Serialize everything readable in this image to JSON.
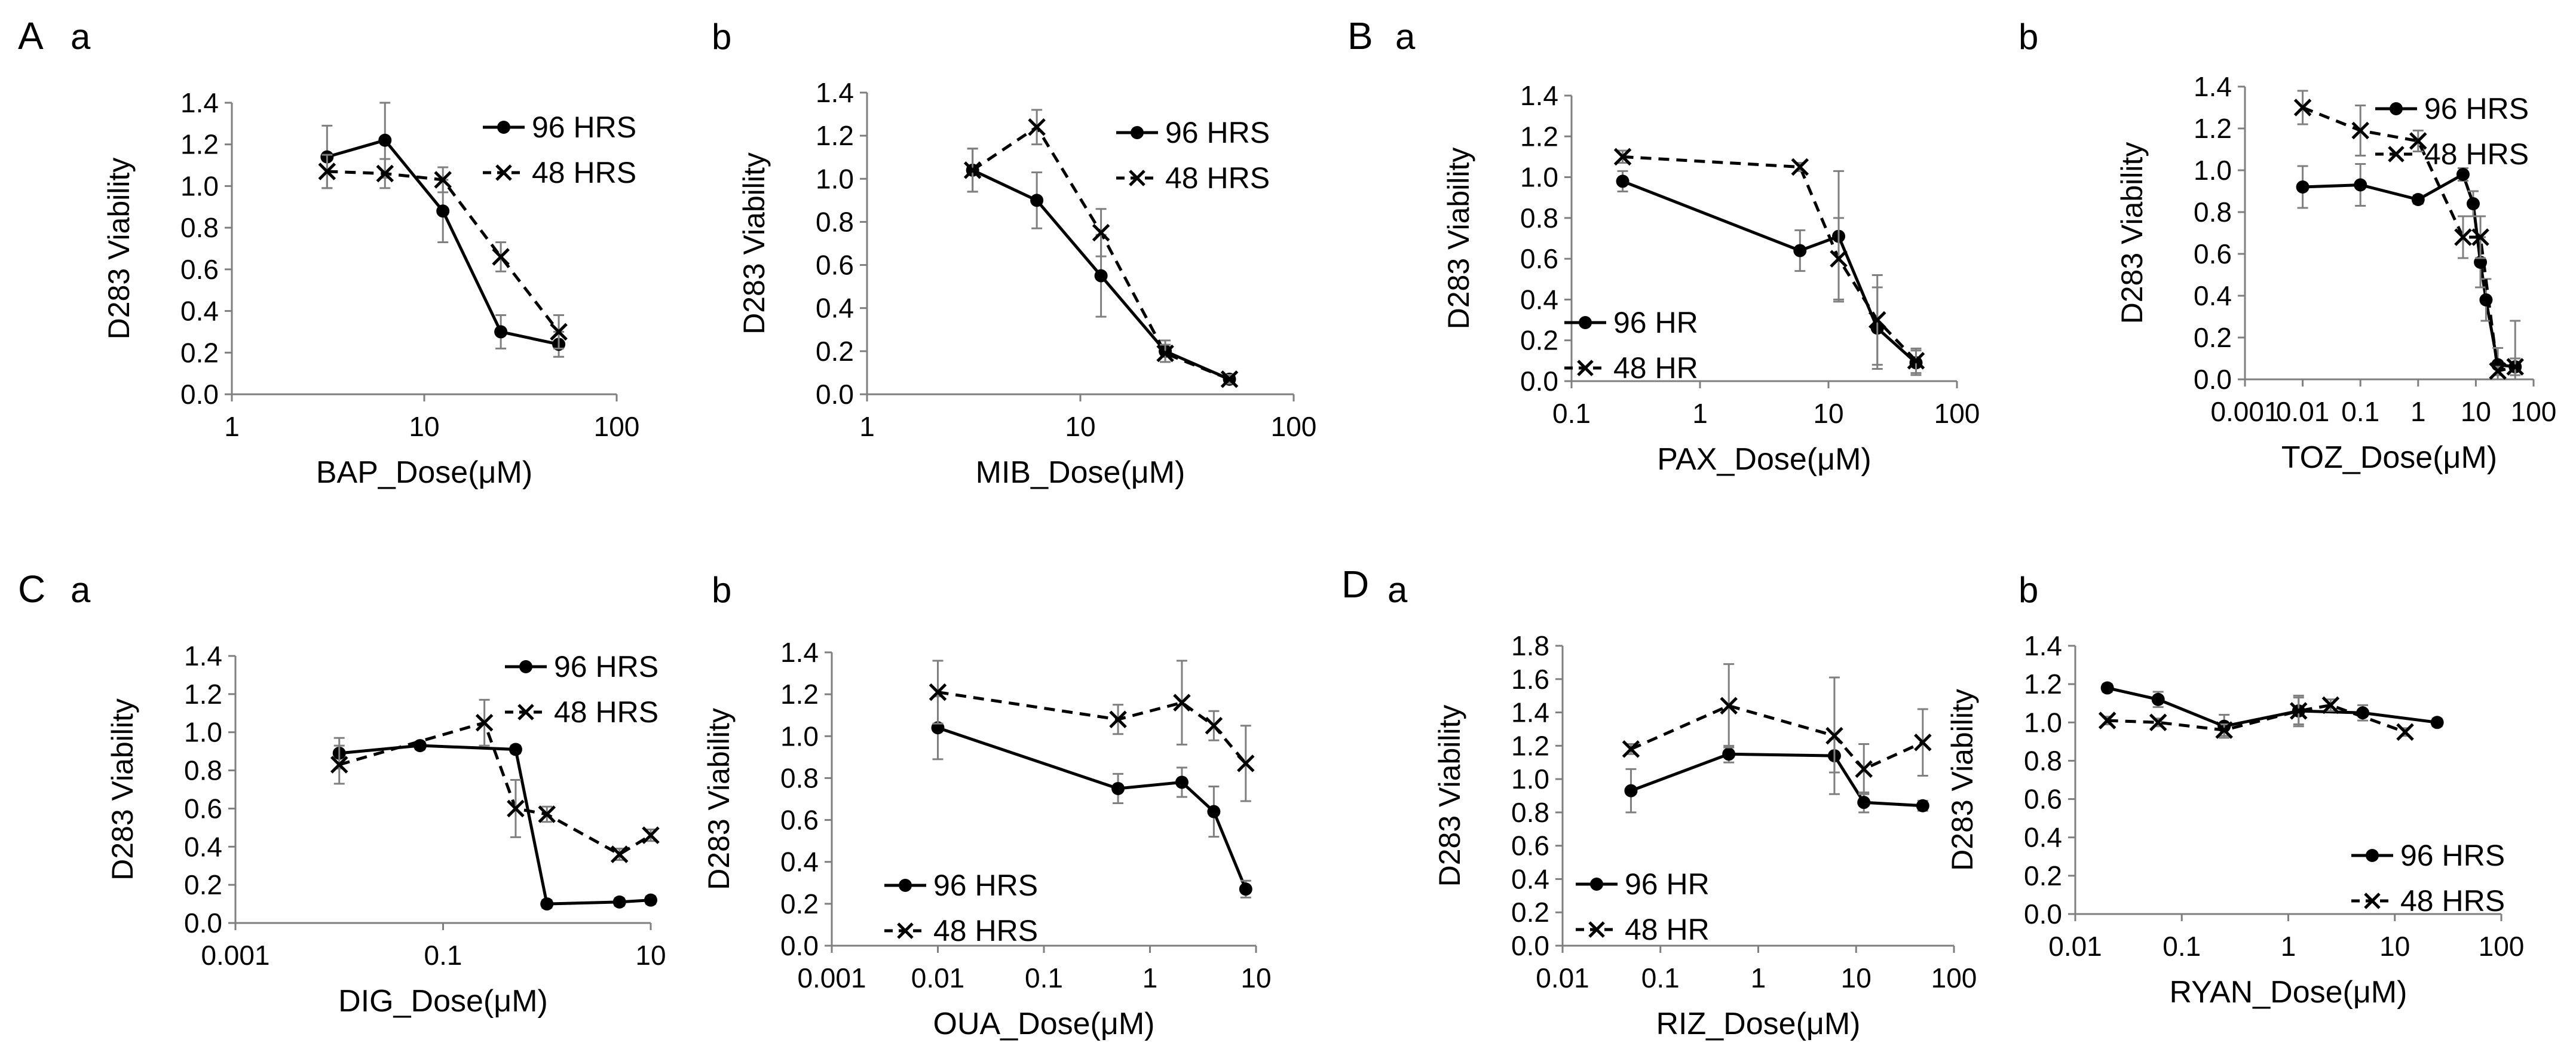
{
  "figure": {
    "groups": [
      {
        "letter": "A",
        "panels": [
          "a",
          "b"
        ]
      },
      {
        "letter": "B",
        "panels": [
          "a",
          "b"
        ]
      },
      {
        "letter": "C",
        "panels": [
          "a",
          "b"
        ]
      },
      {
        "letter": "D",
        "panels": [
          "a",
          "b"
        ]
      }
    ]
  },
  "colors": {
    "axis": "#7f7f7f",
    "series": "#000000",
    "errorbar": "#7f7f7f"
  },
  "chart_data": [
    {
      "id": "A-a",
      "group": "A",
      "sublabel": "a",
      "type": "line",
      "xscale": "log",
      "xlim": [
        1,
        100
      ],
      "xticks": [
        "1",
        "10",
        "100"
      ],
      "ylim": [
        0,
        1.4
      ],
      "yticks": [
        "0.0",
        "0.2",
        "0.4",
        "0.6",
        "0.8",
        "1.0",
        "1.2",
        "1.4"
      ],
      "xlabel": "BAP_Dose(μM)",
      "ylabel": "D283 Viability",
      "legend_position": "top-right",
      "series": [
        {
          "name": "96 HRS",
          "marker": "circle",
          "line": "solid",
          "x": [
            3.125,
            6.25,
            12.5,
            25,
            50
          ],
          "y": [
            1.14,
            1.22,
            0.88,
            0.3,
            0.24
          ],
          "err": [
            0.15,
            0.18,
            0.15,
            0.08,
            0.06
          ]
        },
        {
          "name": "48 HRS",
          "marker": "x",
          "line": "dashed",
          "x": [
            3.125,
            6.25,
            12.5,
            25,
            50
          ],
          "y": [
            1.07,
            1.06,
            1.03,
            0.66,
            0.3
          ],
          "err": [
            0.08,
            0.07,
            0.06,
            0.07,
            0.08
          ]
        }
      ]
    },
    {
      "id": "A-b",
      "group": "",
      "sublabel": "b",
      "type": "line",
      "xscale": "log",
      "xlim": [
        1,
        100
      ],
      "xticks": [
        "1",
        "10",
        "100"
      ],
      "ylim": [
        0,
        1.4
      ],
      "yticks": [
        "0.0",
        "0.2",
        "0.4",
        "0.6",
        "0.8",
        "1.0",
        "1.2",
        "1.4"
      ],
      "xlabel": "MIB_Dose(μM)",
      "ylabel": "D283 Viability",
      "legend_position": "top-right",
      "series": [
        {
          "name": "96 HRS",
          "marker": "circle",
          "line": "solid",
          "x": [
            3.125,
            6.25,
            12.5,
            25,
            50
          ],
          "y": [
            1.04,
            0.9,
            0.55,
            0.2,
            0.07
          ],
          "err": [
            0.1,
            0.13,
            0.19,
            0.05,
            0.02
          ]
        },
        {
          "name": "48 HRS",
          "marker": "x",
          "line": "dashed",
          "x": [
            3.125,
            6.25,
            12.5,
            25,
            50
          ],
          "y": [
            1.04,
            1.24,
            0.75,
            0.19,
            0.07
          ],
          "err": [
            0.1,
            0.08,
            0.11,
            0.04,
            0.02
          ]
        }
      ]
    },
    {
      "id": "B-a",
      "group": "B",
      "sublabel": "a",
      "type": "line",
      "xscale": "log",
      "xlim": [
        0.1,
        100
      ],
      "xticks": [
        "0.1",
        "1",
        "10",
        "100"
      ],
      "ylim": [
        0,
        1.4
      ],
      "yticks": [
        "0.0",
        "0.2",
        "0.4",
        "0.6",
        "0.8",
        "1.0",
        "1.2",
        "1.4"
      ],
      "xlabel": "PAX_Dose(μM)",
      "ylabel": "D283 Viability",
      "legend_position": "bottom-left",
      "series": [
        {
          "name": "96 HR",
          "marker": "circle",
          "line": "solid",
          "x": [
            0.25,
            6,
            12,
            24,
            48
          ],
          "y": [
            0.98,
            0.64,
            0.71,
            0.26,
            0.09
          ],
          "err": [
            0.05,
            0.1,
            0.32,
            0.2,
            0.06
          ]
        },
        {
          "name": "48 HR",
          "marker": "x",
          "line": "dashed",
          "x": [
            0.25,
            6,
            12,
            24,
            48
          ],
          "y": [
            1.1,
            1.05,
            0.6,
            0.3,
            0.1
          ],
          "err": [
            0.03,
            0.02,
            0.2,
            0.22,
            0.06
          ]
        }
      ]
    },
    {
      "id": "B-b",
      "group": "",
      "sublabel": "b",
      "type": "line",
      "xscale": "log",
      "xlim": [
        0.001,
        100
      ],
      "xticks": [
        "0.001",
        "0.01",
        "0.1",
        "1",
        "10",
        "100"
      ],
      "ylim": [
        0,
        1.4
      ],
      "yticks": [
        "0.0",
        "0.2",
        "0.4",
        "0.6",
        "0.8",
        "1.0",
        "1.2",
        "1.4"
      ],
      "xlabel": "TOZ_Dose(μM)",
      "ylabel": "D283 Viability",
      "legend_position": "top-right",
      "series": [
        {
          "name": "96 HRS",
          "marker": "circle",
          "line": "solid",
          "x": [
            0.01,
            0.1,
            1,
            6,
            9,
            12,
            15,
            24,
            48
          ],
          "y": [
            0.92,
            0.93,
            0.86,
            0.98,
            0.84,
            0.56,
            0.38,
            0.07,
            0.06
          ],
          "err": [
            0.1,
            0.1,
            0.02,
            0.03,
            0.06,
            0.12,
            0.1,
            0.08,
            0.04
          ]
        },
        {
          "name": "48 HRS",
          "marker": "x",
          "line": "dashed",
          "x": [
            0.01,
            0.1,
            1,
            6,
            12,
            24,
            48
          ],
          "y": [
            1.3,
            1.19,
            1.14,
            0.68,
            0.68,
            0.04,
            0.06
          ],
          "err": [
            0.08,
            0.12,
            0.05,
            0.1,
            0.1,
            0.02,
            0.22
          ]
        }
      ]
    },
    {
      "id": "C-a",
      "group": "C",
      "sublabel": "a",
      "type": "line",
      "xscale": "log",
      "xlim": [
        0.001,
        10
      ],
      "xticks": [
        "0.001",
        "0.1",
        "10"
      ],
      "ylim": [
        0,
        1.4
      ],
      "yticks": [
        "0.0",
        "0.2",
        "0.4",
        "0.6",
        "0.8",
        "1.0",
        "1.2",
        "1.4"
      ],
      "xlabel": "DIG_Dose(μM)",
      "ylabel": "D283 Viability",
      "legend_position": "top-right",
      "series": [
        {
          "name": "96 HRS",
          "marker": "circle",
          "line": "solid",
          "x": [
            0.01,
            0.06,
            0.5,
            1,
            5,
            10
          ],
          "y": [
            0.89,
            0.93,
            0.91,
            0.1,
            0.11,
            0.12
          ],
          "err": [
            0.08,
            0.02,
            0.02,
            0.02,
            0.02,
            0.02
          ]
        },
        {
          "name": "48 HRS",
          "marker": "x",
          "line": "dashed",
          "x": [
            0.01,
            0.25,
            0.5,
            1,
            5,
            10
          ],
          "y": [
            0.83,
            1.05,
            0.6,
            0.57,
            0.36,
            0.46
          ],
          "err": [
            0.1,
            0.12,
            0.15,
            0.04,
            0.03,
            0.03
          ]
        }
      ]
    },
    {
      "id": "C-b",
      "group": "",
      "sublabel": "b",
      "type": "line",
      "xscale": "log",
      "xlim": [
        0.001,
        10
      ],
      "xticks": [
        "0.001",
        "0.01",
        "0.1",
        "1",
        "10"
      ],
      "ylim": [
        0,
        1.4
      ],
      "yticks": [
        "0.0",
        "0.2",
        "0.4",
        "0.6",
        "0.8",
        "1.0",
        "1.2",
        "1.4"
      ],
      "xlabel": "OUA_Dose(μM)",
      "ylabel": "D283 Viability",
      "legend_position": "bottom-left",
      "series": [
        {
          "name": "96 HRS",
          "marker": "circle",
          "line": "solid",
          "x": [
            0.01,
            0.5,
            2,
            4,
            8
          ],
          "y": [
            1.04,
            0.75,
            0.78,
            0.64,
            0.27
          ],
          "err": [
            0.15,
            0.07,
            0.07,
            0.12,
            0.04
          ]
        },
        {
          "name": "48 HRS",
          "marker": "x",
          "line": "dashed",
          "x": [
            0.01,
            0.5,
            2,
            4,
            8
          ],
          "y": [
            1.21,
            1.08,
            1.16,
            1.05,
            0.87
          ],
          "err": [
            0.15,
            0.07,
            0.2,
            0.07,
            0.18
          ]
        }
      ]
    },
    {
      "id": "D-a",
      "group": "D",
      "sublabel": "a",
      "type": "line",
      "xscale": "log",
      "xlim": [
        0.01,
        100
      ],
      "xticks": [
        "0.01",
        "0.1",
        "1",
        "10",
        "100"
      ],
      "ylim": [
        0,
        1.8
      ],
      "yticks": [
        "0.0",
        "0.2",
        "0.4",
        "0.6",
        "0.8",
        "1.0",
        "1.2",
        "1.4",
        "1.6",
        "1.8"
      ],
      "xlabel": "RIZ_Dose(μM)",
      "ylabel": "D283 Viability",
      "legend_position": "bottom-left",
      "series": [
        {
          "name": "96 HR",
          "marker": "circle",
          "line": "solid",
          "x": [
            0.05,
            0.5,
            6,
            12,
            48
          ],
          "y": [
            0.93,
            1.15,
            1.14,
            0.86,
            0.84
          ],
          "err": [
            0.13,
            0.05,
            0.1,
            0.06,
            0.03
          ]
        },
        {
          "name": "48 HR",
          "marker": "x",
          "line": "dashed",
          "x": [
            0.05,
            0.5,
            6,
            12,
            48
          ],
          "y": [
            1.18,
            1.44,
            1.26,
            1.06,
            1.22
          ],
          "err": [
            0.03,
            0.25,
            0.35,
            0.15,
            0.2
          ]
        }
      ]
    },
    {
      "id": "D-b",
      "group": "",
      "sublabel": "b",
      "type": "line",
      "xscale": "log",
      "xlim": [
        0.01,
        100
      ],
      "xticks": [
        "0.01",
        "0.1",
        "1",
        "10",
        "100"
      ],
      "ylim": [
        0,
        1.4
      ],
      "yticks": [
        "0.0",
        "0.2",
        "0.4",
        "0.6",
        "0.8",
        "1.0",
        "1.2",
        "1.4"
      ],
      "xlabel": "RYAN_Dose(μM)",
      "ylabel": "D283 Viability",
      "legend_position": "bottom-right",
      "series": [
        {
          "name": "96 HRS",
          "marker": "circle",
          "line": "solid",
          "x": [
            0.02,
            0.06,
            0.25,
            1.25,
            5,
            25
          ],
          "y": [
            1.18,
            1.12,
            0.98,
            1.06,
            1.05,
            1.0
          ],
          "err": [
            0.02,
            0.04,
            0.06,
            0.07,
            0.04,
            0.02
          ]
        },
        {
          "name": "48 HRS",
          "marker": "x",
          "line": "dashed",
          "x": [
            0.02,
            0.06,
            0.25,
            1.25,
            2.5,
            12.5
          ],
          "y": [
            1.01,
            1.0,
            0.96,
            1.06,
            1.09,
            0.95
          ],
          "err": [
            0.02,
            0.02,
            0.03,
            0.08,
            0.03,
            0.02
          ]
        }
      ]
    }
  ]
}
